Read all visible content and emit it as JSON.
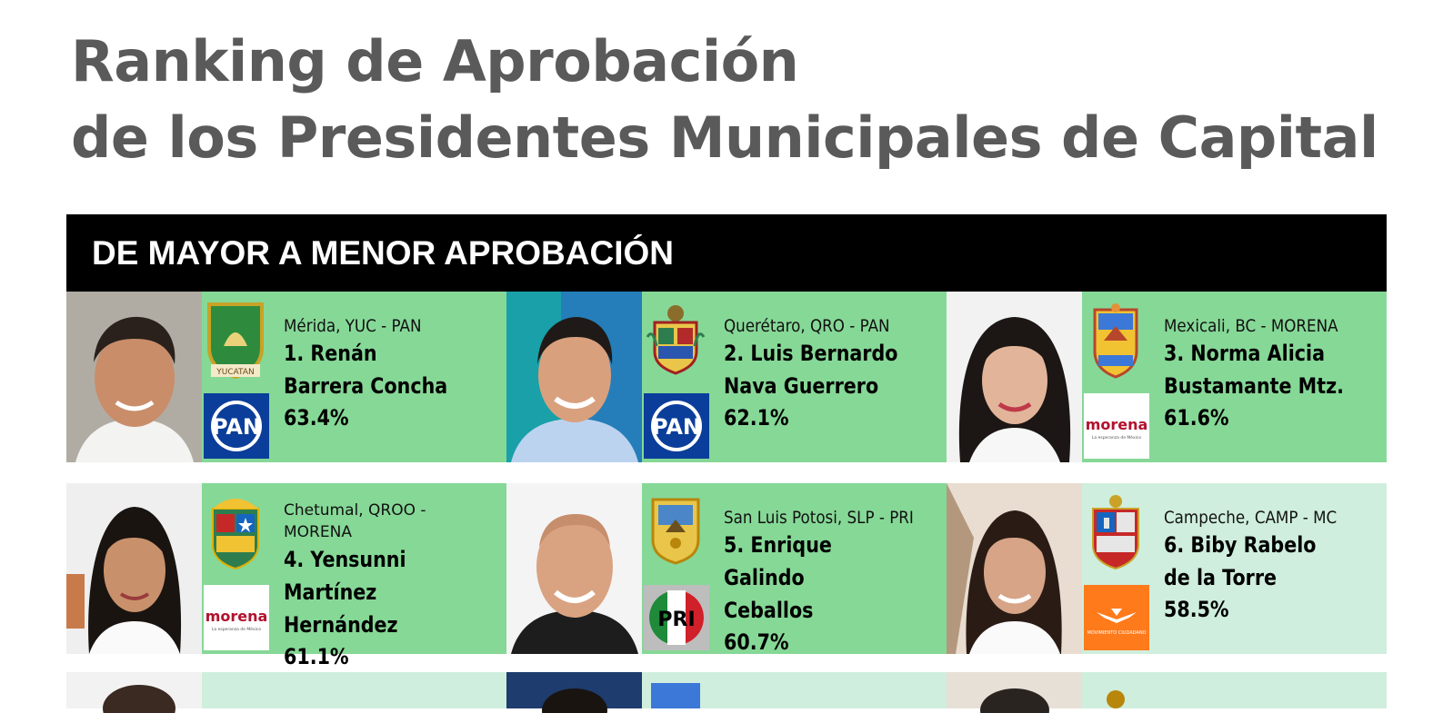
{
  "title": {
    "line1": "Ranking de Aprobación",
    "line2": "de los Presidentes Municipales de Capital"
  },
  "banner": "DE MAYOR A MENOR APROBACIÓN",
  "colors": {
    "card_green": "#86d897",
    "card_light": "#cfeedd",
    "banner_bg": "#000000",
    "title": "#5a5a5a",
    "pan_blue": "#0b3e9a",
    "morena_red": "#b1122e",
    "pri_green": "#1f8a3a",
    "pri_red": "#d0202a",
    "mc_orange": "#ff7a1a"
  },
  "cards": [
    {
      "location": "Mérida, YUC - PAN",
      "name": "1. Renán\nBarrera Concha",
      "approval": "63.4%",
      "party_logo": "PAN",
      "crest_label": "YUCATAN",
      "crest_icon": "yucatan-crest-icon"
    },
    {
      "location": "Querétaro, QRO - PAN",
      "name": "2. Luis Bernardo\nNava Guerrero",
      "approval": "62.1%",
      "party_logo": "PAN",
      "crest_icon": "queretaro-crest-icon"
    },
    {
      "location": "Mexicali, BC - MORENA",
      "name": "3. Norma Alicia\nBustamante Mtz.",
      "approval": "61.6%",
      "party_logo": "morena",
      "party_tagline": "La esperanza de México",
      "crest_icon": "baja-california-crest-icon"
    },
    {
      "location": "Chetumal, QROO - MORENA",
      "name": "4. Yensunni Martínez\nHernández",
      "approval": "61.1%",
      "party_logo": "morena",
      "party_tagline": "La esperanza de México",
      "crest_icon": "quintana-roo-crest-icon"
    },
    {
      "location": "San Luis Potosi, SLP - PRI",
      "name": "5. Enrique Galindo\nCeballos",
      "approval": "60.7%",
      "party_logo": "PRI",
      "crest_icon": "san-luis-potosi-crest-icon"
    },
    {
      "location": "Campeche, CAMP - MC",
      "name": "6. Biby Rabelo\nde la Torre",
      "approval": "58.5%",
      "party_logo": "MOVIMIENTO CIUDADANO",
      "crest_icon": "campeche-crest-icon"
    }
  ]
}
